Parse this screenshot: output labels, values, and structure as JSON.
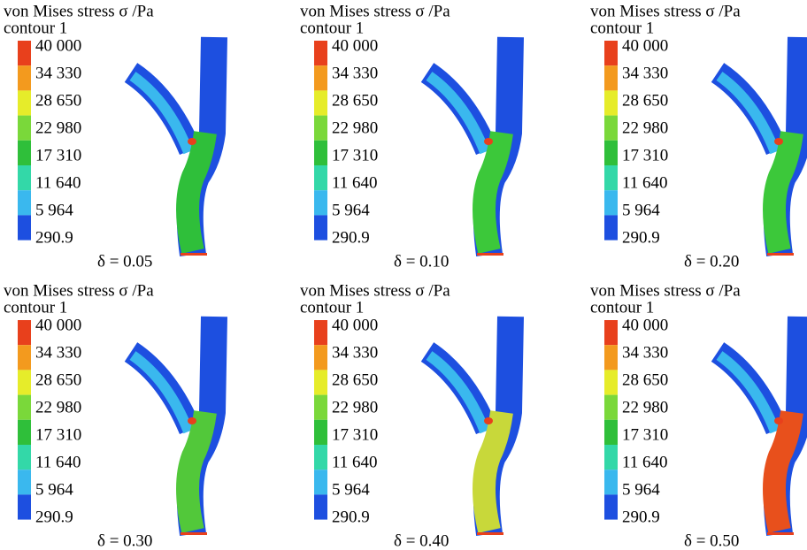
{
  "colorbar_colors": [
    "#e8401c",
    "#f39a1e",
    "#e6ec2a",
    "#7ad83a",
    "#2fbf3a",
    "#33d8a8",
    "#3ab8ee",
    "#1d4fe0"
  ],
  "panels": [
    {
      "title": "von Mises stress σ /Pa",
      "subtitle": "contour 1",
      "colorbar": {
        "labels": [
          "40 000",
          "34 330",
          "28 650",
          "22 980",
          "17 310",
          "11 640",
          "5 964",
          "290.9"
        ]
      },
      "caption": "δ = 0.05"
    },
    {
      "title": "von Mises stress σ /Pa",
      "subtitle": "contour 1",
      "colorbar": {
        "labels": [
          "40 000",
          "34 330",
          "28 650",
          "22 980",
          "17 310",
          "11 640",
          "5 964",
          "290.9"
        ]
      },
      "caption": "δ = 0.10"
    },
    {
      "title": "von Mises stress σ /Pa",
      "subtitle": "contour 1",
      "colorbar": {
        "labels": [
          "40 000",
          "34 330",
          "28 650",
          "22 980",
          "17 310",
          "11 640",
          "5 964",
          "290.9"
        ]
      },
      "caption": "δ = 0.20"
    },
    {
      "title": "von Mises stress σ /Pa",
      "subtitle": "contour 1",
      "colorbar": {
        "labels": [
          "40 000",
          "34 330",
          "28 650",
          "22 980",
          "17 310",
          "11 640",
          "5 964",
          "290.9"
        ]
      },
      "caption": "δ = 0.30"
    },
    {
      "title": "von Mises stress σ /Pa",
      "subtitle": "contour 1",
      "colorbar": {
        "labels": [
          "40 000",
          "34 330",
          "28 650",
          "22 980",
          "17 310",
          "11 640",
          "5 964",
          "290.9"
        ]
      },
      "caption": "δ = 0.40"
    },
    {
      "title": "von Mises stress σ /Pa",
      "subtitle": "contour 1",
      "colorbar": {
        "labels": [
          "40 000",
          "34 330",
          "28 650",
          "22 980",
          "17 310",
          "11 640",
          "5 964",
          "290.9"
        ]
      },
      "caption": "δ = 0.50"
    }
  ]
}
